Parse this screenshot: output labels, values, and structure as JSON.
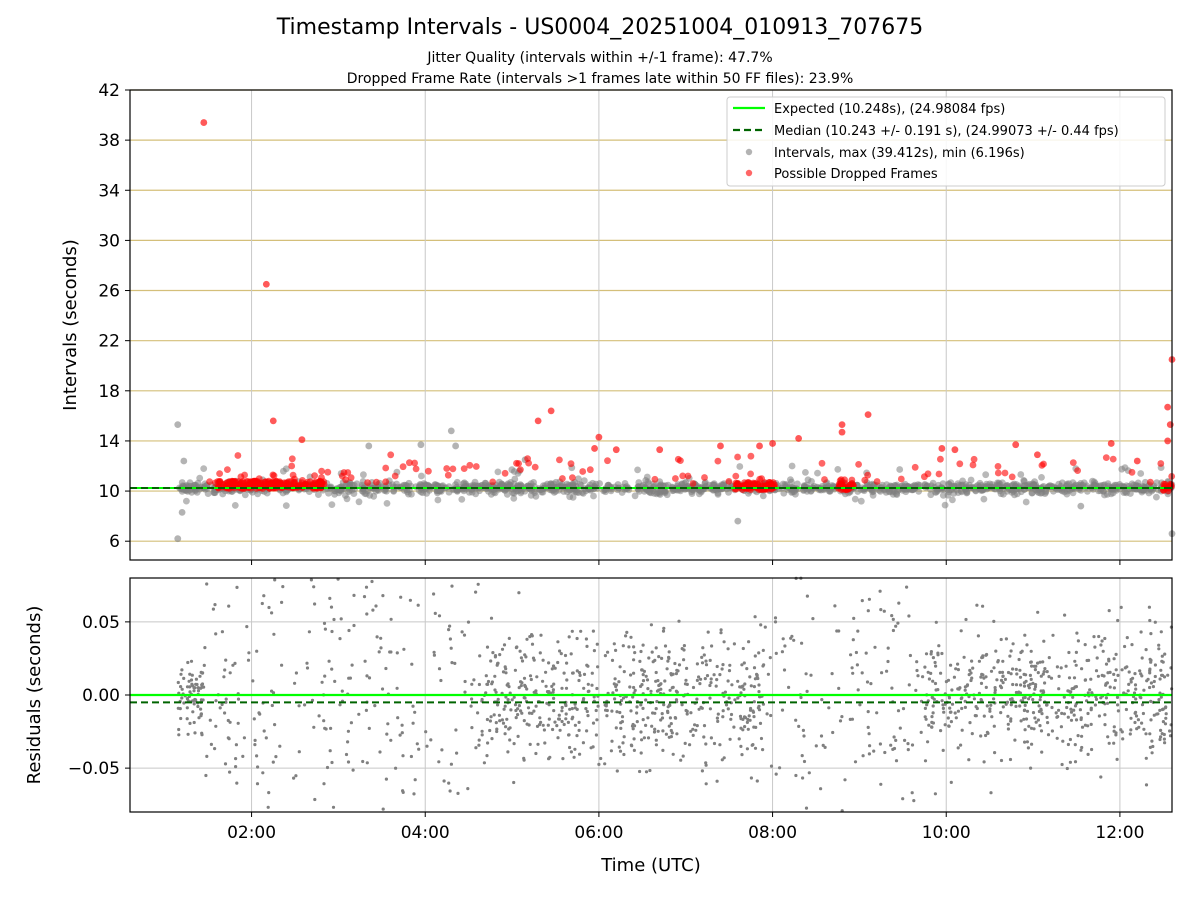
{
  "figure": {
    "title": "Timestamp Intervals - US0004_20251004_010913_707675",
    "subtitle_jitter": "Jitter Quality (intervals within +/-1 frame): 47.7%",
    "subtitle_dropped": "Dropped Frame Rate (intervals >1 frames late within 50 FF files): 23.9%"
  },
  "colors": {
    "expected": "#00ff00",
    "median": "#006400",
    "intervals": "#808080",
    "dropped": "#ff0000",
    "hgrid_top": "#d4bf7a",
    "grid": "#c8c8c8"
  },
  "chart_data": [
    {
      "type": "scatter",
      "panel": "intervals",
      "ylabel": "Intervals (seconds)",
      "xlabel": "",
      "xlim_hours": [
        0.6,
        12.6
      ],
      "ylim": [
        4.5,
        42
      ],
      "y_ticks": [
        6,
        10,
        14,
        18,
        22,
        26,
        30,
        34,
        38,
        42
      ],
      "y_tick_labels": [
        "6",
        "10",
        "14",
        "18",
        "22",
        "26",
        "30",
        "34",
        "38",
        "42"
      ],
      "legend_position": "top-right",
      "legend": [
        {
          "key": "expected",
          "label": "Expected (10.248s), (24.98084 fps)"
        },
        {
          "key": "median",
          "label": "Median (10.243 +/- 0.191 s), (24.99073 +/- 0.44 fps)"
        },
        {
          "key": "intervals",
          "label": "Intervals, max (39.412s), min (6.196s)"
        },
        {
          "key": "dropped",
          "label": "Possible Dropped Frames"
        }
      ],
      "expected": 10.248,
      "median": 10.243,
      "intervals_max": 39.412,
      "intervals_min": 6.196,
      "dropped_points": [
        {
          "t": 1.45,
          "y": 39.4
        },
        {
          "t": 2.17,
          "y": 26.5
        },
        {
          "t": 2.25,
          "y": 15.6
        },
        {
          "t": 2.58,
          "y": 14.1
        },
        {
          "t": 5.3,
          "y": 15.6
        },
        {
          "t": 5.45,
          "y": 16.4
        },
        {
          "t": 5.95,
          "y": 13.4
        },
        {
          "t": 6.0,
          "y": 14.3
        },
        {
          "t": 6.2,
          "y": 13.3
        },
        {
          "t": 6.7,
          "y": 13.3
        },
        {
          "t": 7.4,
          "y": 13.6
        },
        {
          "t": 7.85,
          "y": 13.6
        },
        {
          "t": 8.0,
          "y": 13.8
        },
        {
          "t": 8.3,
          "y": 14.2
        },
        {
          "t": 8.8,
          "y": 15.3
        },
        {
          "t": 8.8,
          "y": 14.7
        },
        {
          "t": 9.1,
          "y": 16.1
        },
        {
          "t": 9.95,
          "y": 13.4
        },
        {
          "t": 10.1,
          "y": 13.3
        },
        {
          "t": 10.8,
          "y": 13.7
        },
        {
          "t": 11.05,
          "y": 12.9
        },
        {
          "t": 11.9,
          "y": 13.8
        },
        {
          "t": 12.2,
          "y": 12.4
        },
        {
          "t": 12.55,
          "y": 16.7
        },
        {
          "t": 12.6,
          "y": 20.5
        },
        {
          "t": 12.58,
          "y": 15.3
        },
        {
          "t": 12.55,
          "y": 14.0
        }
      ],
      "interval_points": [
        {
          "t": 1.15,
          "y": 15.3
        },
        {
          "t": 1.15,
          "y": 6.2
        },
        {
          "t": 1.2,
          "y": 8.3
        },
        {
          "t": 1.22,
          "y": 12.4
        },
        {
          "t": 3.35,
          "y": 13.6
        },
        {
          "t": 3.95,
          "y": 13.7
        },
        {
          "t": 4.3,
          "y": 14.8
        },
        {
          "t": 4.35,
          "y": 13.6
        },
        {
          "t": 5.15,
          "y": 12.5
        },
        {
          "t": 7.6,
          "y": 7.6
        },
        {
          "t": 12.6,
          "y": 6.6
        },
        {
          "t": 11.55,
          "y": 8.8
        }
      ],
      "dense_clusters": [
        {
          "t_start": 1.6,
          "t_end": 2.85,
          "y_center": 10.5
        },
        {
          "t_start": 7.55,
          "t_end": 8.05,
          "y_center": 10.4
        },
        {
          "t_start": 8.75,
          "t_end": 8.95,
          "y_center": 10.4
        },
        {
          "t_start": 12.5,
          "t_end": 12.6,
          "y_center": 10.3
        }
      ]
    },
    {
      "type": "scatter",
      "panel": "residuals",
      "ylabel": "Residuals (seconds)",
      "xlabel": "Time (UTC)",
      "xlim_hours": [
        0.6,
        12.6
      ],
      "ylim": [
        -0.08,
        0.08
      ],
      "y_ticks": [
        -0.05,
        0.0,
        0.05
      ],
      "y_tick_labels": [
        "−0.05",
        "0.00",
        "0.05"
      ],
      "x_ticks_hours": [
        2,
        4,
        6,
        8,
        10,
        12
      ],
      "x_tick_labels": [
        "02:00",
        "04:00",
        "06:00",
        "08:00",
        "10:00",
        "12:00"
      ],
      "expected_residual": 0.0,
      "median_residual": -0.005
    }
  ]
}
